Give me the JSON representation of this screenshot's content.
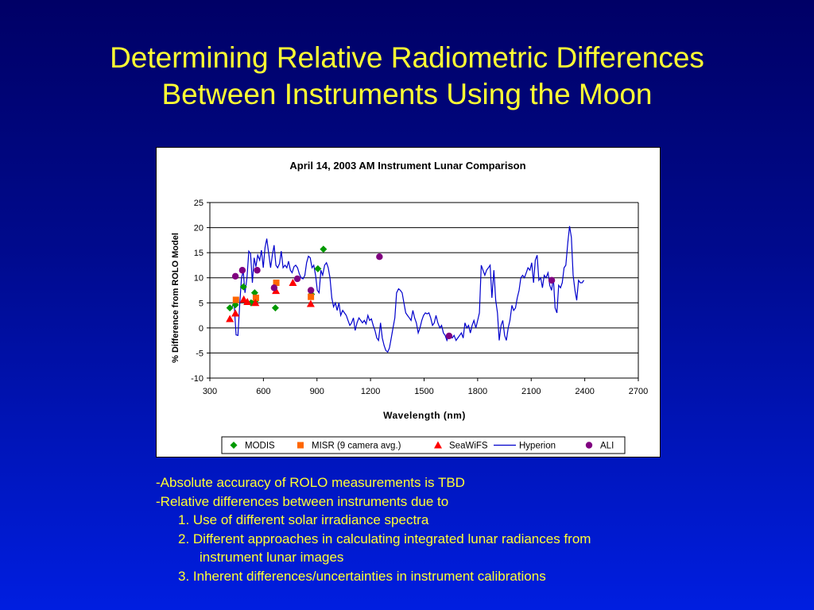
{
  "slide": {
    "title_line1": "Determining Relative Radiometric Differences",
    "title_line2": "Between Instruments Using the Moon"
  },
  "notes": [
    "-Absolute accuracy of ROLO measurements is TBD",
    "-Relative differences between instruments due to",
    "1. Use of different solar irradiance spectra",
    "2. Different approaches in calculating integrated lunar radiances from",
    "instrument lunar images",
    "3. Inherent differences/uncertainties in instrument calibrations"
  ],
  "colors": {
    "title": "#ffff33",
    "modis": "#009900",
    "misr": "#ff6600",
    "seawifs": "#ff0000",
    "hyperion": "#0000cc",
    "ali": "#800080"
  },
  "chart_data": {
    "type": "scatter",
    "title": "April 14, 2003 AM Instrument Lunar Comparison",
    "xlabel": "Wavelength (nm)",
    "ylabel": "% Difference from ROLO Model",
    "xlim": [
      300,
      2700
    ],
    "ylim": [
      -10,
      25
    ],
    "xticks": [
      300,
      600,
      900,
      1200,
      1500,
      1800,
      2100,
      2400,
      2700
    ],
    "yticks": [
      -10,
      -5,
      0,
      5,
      10,
      15,
      20,
      25
    ],
    "grid": "horizontal",
    "legend_position": "bottom",
    "series": [
      {
        "name": "MODIS",
        "marker": "diamond",
        "color": "#009900",
        "points": [
          [
            412,
            4.0
          ],
          [
            443,
            4.6
          ],
          [
            488,
            8.2
          ],
          [
            531,
            5.0
          ],
          [
            551,
            7.0
          ],
          [
            555,
            5.4
          ],
          [
            667,
            4.0
          ],
          [
            869,
            6.7
          ],
          [
            905,
            11.8
          ],
          [
            936,
            15.7
          ]
        ]
      },
      {
        "name": "MISR (9 camera avg.)",
        "marker": "square",
        "color": "#ff6600",
        "points": [
          [
            446,
            5.6
          ],
          [
            558,
            6.0
          ],
          [
            672,
            9.0
          ],
          [
            866,
            6.2
          ]
        ]
      },
      {
        "name": "SeaWiFS",
        "marker": "triangle",
        "color": "#ff0000",
        "points": [
          [
            412,
            1.8
          ],
          [
            443,
            2.9
          ],
          [
            490,
            5.7
          ],
          [
            510,
            5.2
          ],
          [
            555,
            5.0
          ],
          [
            670,
            7.4
          ],
          [
            765,
            9.0
          ],
          [
            865,
            4.8
          ]
        ]
      },
      {
        "name": "Hyperion",
        "marker": "line",
        "color": "#0000cc",
        "points": [
          [
            426,
            4.2
          ],
          [
            436,
            5.0
          ],
          [
            447,
            -1.4
          ],
          [
            457,
            -1.5
          ],
          [
            467,
            4.5
          ],
          [
            477,
            10.0
          ],
          [
            487,
            11.3
          ],
          [
            497,
            7.0
          ],
          [
            508,
            10.0
          ],
          [
            518,
            15.3
          ],
          [
            528,
            14.8
          ],
          [
            538,
            9.0
          ],
          [
            548,
            14.0
          ],
          [
            558,
            12.2
          ],
          [
            568,
            14.5
          ],
          [
            579,
            13.5
          ],
          [
            589,
            15.5
          ],
          [
            599,
            12.0
          ],
          [
            609,
            16.0
          ],
          [
            619,
            17.8
          ],
          [
            629,
            15.0
          ],
          [
            640,
            12.0
          ],
          [
            650,
            14.5
          ],
          [
            660,
            16.5
          ],
          [
            670,
            12.5
          ],
          [
            680,
            12.0
          ],
          [
            690,
            12.8
          ],
          [
            700,
            15.3
          ],
          [
            710,
            12.0
          ],
          [
            721,
            12.5
          ],
          [
            731,
            12.0
          ],
          [
            741,
            13.3
          ],
          [
            751,
            11.5
          ],
          [
            761,
            11.0
          ],
          [
            771,
            12.2
          ],
          [
            781,
            12.5
          ],
          [
            791,
            12.0
          ],
          [
            801,
            10.8
          ],
          [
            811,
            10.0
          ],
          [
            822,
            9.8
          ],
          [
            832,
            10.5
          ],
          [
            842,
            13.0
          ],
          [
            852,
            14.3
          ],
          [
            862,
            14.0
          ],
          [
            872,
            12.0
          ],
          [
            882,
            12.5
          ],
          [
            892,
            10.5
          ],
          [
            902,
            7.5
          ],
          [
            912,
            7.0
          ],
          [
            922,
            11.5
          ],
          [
            932,
            10.5
          ],
          [
            943,
            12.5
          ],
          [
            953,
            13.0
          ],
          [
            963,
            12.0
          ],
          [
            973,
            10.0
          ],
          [
            983,
            6.0
          ],
          [
            993,
            4.2
          ],
          [
            1003,
            5.0
          ],
          [
            1013,
            3.5
          ],
          [
            1023,
            5.0
          ],
          [
            1033,
            2.5
          ],
          [
            1044,
            3.5
          ],
          [
            1054,
            3.0
          ],
          [
            1064,
            2.5
          ],
          [
            1074,
            1.5
          ],
          [
            1084,
            0.5
          ],
          [
            1094,
            1.0
          ],
          [
            1104,
            2.0
          ],
          [
            1114,
            -0.5
          ],
          [
            1124,
            1.0
          ],
          [
            1135,
            2.0
          ],
          [
            1145,
            1.5
          ],
          [
            1155,
            1.0
          ],
          [
            1165,
            1.5
          ],
          [
            1175,
            0.8
          ],
          [
            1185,
            2.5
          ],
          [
            1195,
            1.5
          ],
          [
            1205,
            1.8
          ],
          [
            1215,
            0.5
          ],
          [
            1225,
            -0.5
          ],
          [
            1235,
            -2.0
          ],
          [
            1245,
            -2.5
          ],
          [
            1256,
            1.0
          ],
          [
            1266,
            -2.0
          ],
          [
            1276,
            -3.5
          ],
          [
            1286,
            -4.5
          ],
          [
            1296,
            -4.8
          ],
          [
            1306,
            -4.0
          ],
          [
            1316,
            -2.0
          ],
          [
            1326,
            0.0
          ],
          [
            1336,
            2.0
          ],
          [
            1346,
            7.0
          ],
          [
            1357,
            7.8
          ],
          [
            1367,
            7.5
          ],
          [
            1377,
            7.0
          ],
          [
            1387,
            5.0
          ],
          [
            1397,
            3.0
          ],
          [
            1407,
            2.5
          ],
          [
            1417,
            2.0
          ],
          [
            1427,
            1.5
          ],
          [
            1437,
            3.5
          ],
          [
            1447,
            2.0
          ],
          [
            1457,
            1.0
          ],
          [
            1467,
            -1.0
          ],
          [
            1477,
            0.0
          ],
          [
            1487,
            1.5
          ],
          [
            1497,
            2.5
          ],
          [
            1507,
            3.0
          ],
          [
            1517,
            2.8
          ],
          [
            1527,
            3.0
          ],
          [
            1537,
            2.0
          ],
          [
            1547,
            0.5
          ],
          [
            1557,
            1.0
          ],
          [
            1567,
            2.5
          ],
          [
            1577,
            1.0
          ],
          [
            1588,
            0.0
          ],
          [
            1598,
            0.5
          ],
          [
            1608,
            -1.0
          ],
          [
            1618,
            -1.5
          ],
          [
            1628,
            -2.5
          ],
          [
            1638,
            -1.5
          ],
          [
            1648,
            -1.8
          ],
          [
            1658,
            -2.0
          ],
          [
            1668,
            -1.5
          ],
          [
            1679,
            -2.5
          ],
          [
            1689,
            -2.0
          ],
          [
            1699,
            -1.5
          ],
          [
            1709,
            -1.0
          ],
          [
            1719,
            -2.0
          ],
          [
            1729,
            1.0
          ],
          [
            1739,
            0.0
          ],
          [
            1749,
            0.5
          ],
          [
            1759,
            -1.0
          ],
          [
            1769,
            0.5
          ],
          [
            1779,
            1.5
          ],
          [
            1790,
            0.0
          ],
          [
            1800,
            1.5
          ],
          [
            1810,
            3.0
          ],
          [
            1820,
            12.5
          ],
          [
            1830,
            11.5
          ],
          [
            1840,
            10.5
          ],
          [
            1850,
            11.5
          ],
          [
            1860,
            12.0
          ],
          [
            1870,
            12.5
          ],
          [
            1880,
            6.0
          ],
          [
            1891,
            11.5
          ],
          [
            1901,
            5.5
          ],
          [
            1911,
            3.0
          ],
          [
            1921,
            -2.5
          ],
          [
            1931,
            0.5
          ],
          [
            1941,
            1.5
          ],
          [
            1951,
            -1.5
          ],
          [
            1961,
            -2.5
          ],
          [
            1971,
            0.0
          ],
          [
            1981,
            1.5
          ],
          [
            1992,
            4.5
          ],
          [
            2002,
            3.5
          ],
          [
            2012,
            4.0
          ],
          [
            2022,
            6.0
          ],
          [
            2032,
            7.5
          ],
          [
            2042,
            10.0
          ],
          [
            2052,
            10.5
          ],
          [
            2062,
            10.0
          ],
          [
            2072,
            11.0
          ],
          [
            2082,
            12.0
          ],
          [
            2093,
            11.5
          ],
          [
            2103,
            13.0
          ],
          [
            2113,
            9.0
          ],
          [
            2123,
            13.5
          ],
          [
            2133,
            14.5
          ],
          [
            2143,
            9.5
          ],
          [
            2153,
            10.0
          ],
          [
            2163,
            8.0
          ],
          [
            2173,
            10.5
          ],
          [
            2183,
            10.0
          ],
          [
            2194,
            11.0
          ],
          [
            2204,
            8.5
          ],
          [
            2214,
            7.5
          ],
          [
            2224,
            10.0
          ],
          [
            2234,
            4.0
          ],
          [
            2244,
            3.0
          ],
          [
            2254,
            8.5
          ],
          [
            2264,
            8.0
          ],
          [
            2274,
            9.0
          ],
          [
            2284,
            12.0
          ],
          [
            2294,
            12.5
          ],
          [
            2305,
            17.0
          ],
          [
            2315,
            20.3
          ],
          [
            2325,
            18.0
          ],
          [
            2335,
            10.5
          ],
          [
            2345,
            7.5
          ],
          [
            2355,
            5.5
          ],
          [
            2365,
            9.5
          ],
          [
            2375,
            9.0
          ],
          [
            2385,
            9.0
          ],
          [
            2395,
            9.5
          ]
        ]
      },
      {
        "name": "ALI",
        "marker": "circle",
        "color": "#800080",
        "points": [
          [
            443,
            10.3
          ],
          [
            482,
            11.5
          ],
          [
            565,
            11.5
          ],
          [
            660,
            8.0
          ],
          [
            790,
            9.8
          ],
          [
            866,
            7.5
          ],
          [
            1250,
            14.2
          ],
          [
            1640,
            -1.6
          ],
          [
            2215,
            9.5
          ]
        ]
      }
    ]
  }
}
